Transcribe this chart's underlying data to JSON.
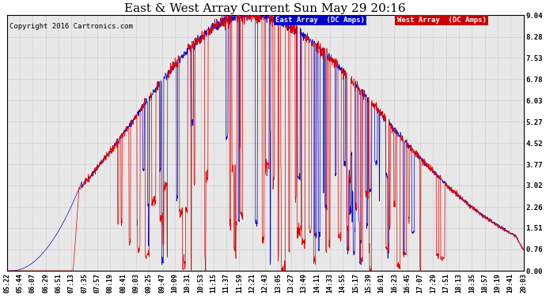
{
  "title": "East & West Array Current Sun May 29 20:16",
  "copyright": "Copyright 2016 Cartronics.com",
  "legend_east": "East Array  (DC Amps)",
  "legend_west": "West Array  (DC Amps)",
  "east_color": "#0000cc",
  "west_color": "#dd0000",
  "legend_east_bg": "#0000cc",
  "legend_west_bg": "#cc0000",
  "background_color": "#ffffff",
  "plot_bg_color": "#e8e8e8",
  "grid_color": "#bbbbbb",
  "yticks": [
    0.0,
    0.76,
    1.51,
    2.26,
    3.02,
    3.77,
    4.52,
    5.27,
    6.03,
    6.78,
    7.53,
    8.28,
    9.04
  ],
  "ymax": 9.04,
  "ymin": 0.0,
  "title_fontsize": 11,
  "copyright_fontsize": 6.5,
  "tick_fontsize": 6.5
}
